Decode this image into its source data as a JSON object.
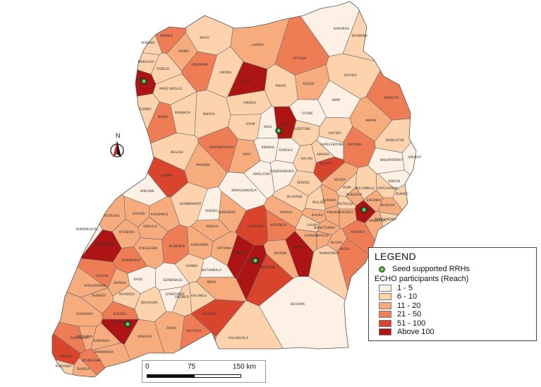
{
  "colors": {
    "c1": "#fdf0e4",
    "c2": "#fcd3ac",
    "c3": "#f7ac7d",
    "c4": "#ee7d55",
    "c5": "#d9452c",
    "c6": "#ad1414"
  },
  "districts": [
    {
      "name": "KAABONG",
      "c": "c2"
    },
    {
      "name": "KARENGA",
      "c": "c1"
    },
    {
      "name": "LAMWO",
      "c": "c3"
    },
    {
      "name": "KITGUM",
      "c": "c4"
    },
    {
      "name": "KOTIDO",
      "c": "c2"
    },
    {
      "name": "MOROTO",
      "c": "c4"
    },
    {
      "name": "NAPAK",
      "c": "c3"
    },
    {
      "name": "NABILATUK",
      "c": "c2"
    },
    {
      "name": "NAKAPIRIPIRIT",
      "c": "c1"
    },
    {
      "name": "AMUDAT",
      "c": "c1"
    },
    {
      "name": "ABIM",
      "c": "c1"
    },
    {
      "name": "AGAGO",
      "c": "c3"
    },
    {
      "name": "PADER",
      "c": "c2"
    },
    {
      "name": "GULU",
      "c": "c6"
    },
    {
      "name": "AMURU",
      "c": "c2"
    },
    {
      "name": "OMORO",
      "c": "c2"
    },
    {
      "name": "ADJUMANI",
      "c": "c4"
    },
    {
      "name": "YUMBE",
      "c": "c3"
    },
    {
      "name": "MOYO",
      "c": "c2"
    },
    {
      "name": "OBONGI",
      "c": "c4"
    },
    {
      "name": "KOBOKO",
      "c": "c2"
    },
    {
      "name": "MARACHA",
      "c": "c2"
    },
    {
      "name": "TEREGO",
      "c": "c2"
    },
    {
      "name": "ARUA",
      "c": "c6"
    },
    {
      "name": "MADI OKOLLO",
      "c": "c2"
    },
    {
      "name": "ZOMBO",
      "c": "c2"
    },
    {
      "name": "NEBBI",
      "c": "c4"
    },
    {
      "name": "PAKWACH",
      "c": "c2"
    },
    {
      "name": "NWOYA",
      "c": "c2"
    },
    {
      "name": "OYAM",
      "c": "c2"
    },
    {
      "name": "KOLE",
      "c": "c1"
    },
    {
      "name": "LIRA",
      "c": "c6"
    },
    {
      "name": "ALEBTONG",
      "c": "c2"
    },
    {
      "name": "OTUKE",
      "c": "c1"
    },
    {
      "name": "KOTIDO",
      "c": "c2"
    },
    {
      "name": "KAPELEBYONG",
      "c": "c1"
    },
    {
      "name": "AMURIA",
      "c": "c2"
    },
    {
      "name": "KATAKWI",
      "c": "c4"
    },
    {
      "name": "SOROTI",
      "c": "c5"
    },
    {
      "name": "DOKOLO",
      "c": "c1"
    },
    {
      "name": "KWANIA",
      "c": "c1"
    },
    {
      "name": "KALAKI",
      "c": "c2"
    },
    {
      "name": "APAC",
      "c": "c3"
    },
    {
      "name": "AMOLATAR",
      "c": "c1"
    },
    {
      "name": "KIRYANDONGO",
      "c": "c4"
    },
    {
      "name": "MASINDI",
      "c": "c3"
    },
    {
      "name": "BULIISA",
      "c": "c2"
    },
    {
      "name": "HOIMA",
      "c": "c5"
    },
    {
      "name": "KIKUUBE",
      "c": "c1"
    },
    {
      "name": "KYANKWANZI",
      "c": "c2"
    },
    {
      "name": "NAKASONGOLA",
      "c": "c1"
    },
    {
      "name": "KABERAMAIDO",
      "c": "c1"
    },
    {
      "name": "SERERE",
      "c": "c2"
    },
    {
      "name": "NGORA",
      "c": "c3"
    },
    {
      "name": "KUMI",
      "c": "c2"
    },
    {
      "name": "BUKEDEA",
      "c": "c3"
    },
    {
      "name": "BULAMBULI",
      "c": "c2"
    },
    {
      "name": "KAPCHORWA",
      "c": "c2"
    },
    {
      "name": "KWEEN",
      "c": "c1"
    },
    {
      "name": "BUKWO",
      "c": "c2"
    },
    {
      "name": "MBALE",
      "c": "c6"
    },
    {
      "name": "SIRONKO",
      "c": "c3"
    },
    {
      "name": "BUDUDA",
      "c": "c3"
    },
    {
      "name": "NAMISINDWA",
      "c": "c2"
    },
    {
      "name": "MANAFWA",
      "c": "c3"
    },
    {
      "name": "TORORO",
      "c": "c4"
    },
    {
      "name": "BUTALEJA",
      "c": "c2"
    },
    {
      "name": "BUDAKA",
      "c": "c3"
    },
    {
      "name": "PALLISA",
      "c": "c2"
    },
    {
      "name": "KIBUKU",
      "c": "c3"
    },
    {
      "name": "BUKEDEA",
      "c": "c3"
    },
    {
      "name": "BUYENDE",
      "c": "c2"
    },
    {
      "name": "KALIRO",
      "c": "c3"
    },
    {
      "name": "NAMUTUMBA",
      "c": "c3"
    },
    {
      "name": "LUUKA",
      "c": "c2"
    },
    {
      "name": "IGANGA",
      "c": "c3"
    },
    {
      "name": "JINJA",
      "c": "c6"
    },
    {
      "name": "BUGIRI",
      "c": "c3"
    },
    {
      "name": "BUSIA",
      "c": "c4"
    },
    {
      "name": "NAMAYINGO",
      "c": "c2"
    },
    {
      "name": "MAYUGE",
      "c": "c3"
    },
    {
      "name": "KAMULI",
      "c": "c3"
    },
    {
      "name": "KAYUNGA",
      "c": "c4"
    },
    {
      "name": "BUIKWE",
      "c": "c3"
    },
    {
      "name": "MUKONO",
      "c": "c5"
    },
    {
      "name": "BUVUMA",
      "c": "c1"
    },
    {
      "name": "KAMPALA",
      "c": "c6"
    },
    {
      "name": "WAKISO",
      "c": "c6"
    },
    {
      "name": "LUWEERO",
      "c": "c5"
    },
    {
      "name": "NAKASEKE",
      "c": "c3"
    },
    {
      "name": "KIBOGA",
      "c": "c3"
    },
    {
      "name": "MITYANA",
      "c": "c3"
    },
    {
      "name": "MUBENDE",
      "c": "c4"
    },
    {
      "name": "KASSANDA",
      "c": "c3"
    },
    {
      "name": "GOMBA",
      "c": "c2"
    },
    {
      "name": "BUTAMBALA",
      "c": "c1"
    },
    {
      "name": "MPIGI",
      "c": "c3"
    },
    {
      "name": "KALUNGU",
      "c": "c2"
    },
    {
      "name": "MASAKA",
      "c": "c5"
    },
    {
      "name": "KALANGALA",
      "c": "c2"
    },
    {
      "name": "LWENGO",
      "c": "c2"
    },
    {
      "name": "RAKAI",
      "c": "c3"
    },
    {
      "name": "KYOTERA",
      "c": "c4"
    },
    {
      "name": "ISINGIRO",
      "c": "c3"
    },
    {
      "name": "KIRUHURA",
      "c": "c2"
    },
    {
      "name": "SEMBABULE",
      "c": "c1"
    },
    {
      "name": "LYANTONDE",
      "c": "c1"
    },
    {
      "name": "KAZO",
      "c": "c1"
    },
    {
      "name": "IBANDA",
      "c": "c3"
    },
    {
      "name": "KAMWENGE",
      "c": "c4"
    },
    {
      "name": "KYEGEGWA",
      "c": "c3"
    },
    {
      "name": "KYENJOJO",
      "c": "c3"
    },
    {
      "name": "KAKUMIRO",
      "c": "c3"
    },
    {
      "name": "KAGADI",
      "c": "c3"
    },
    {
      "name": "KIBAALE",
      "c": "c3"
    },
    {
      "name": "NTOROKO",
      "c": "c3"
    },
    {
      "name": "BUNDIBUGYO",
      "c": "c1"
    },
    {
      "name": "FORTPORTAL",
      "c": "c6"
    },
    {
      "name": "KASESE",
      "c": "c4"
    },
    {
      "name": "KITAGWENDA",
      "c": "c3"
    },
    {
      "name": "BUHWEJU",
      "c": "c2"
    },
    {
      "name": "RUBIRIZI",
      "c": "c3"
    },
    {
      "name": "BUSHENYI",
      "c": "c3"
    },
    {
      "name": "MBARARA",
      "c": "c6"
    },
    {
      "name": "SHEEMA",
      "c": "c4"
    },
    {
      "name": "MITOOMA",
      "c": "c3"
    },
    {
      "name": "RUKUNGIRI",
      "c": "c4"
    },
    {
      "name": "KANUNGU",
      "c": "c3"
    },
    {
      "name": "RWAMPARA",
      "c": "c3"
    },
    {
      "name": "NTUNGAMO",
      "c": "c4"
    },
    {
      "name": "RUKIGA",
      "c": "c3"
    },
    {
      "name": "KABALE",
      "c": "c5"
    },
    {
      "name": "RUBANDA",
      "c": "c2"
    },
    {
      "name": "KISORO",
      "c": "c1"
    }
  ],
  "seed_sites": [
    {
      "name": "Arua"
    },
    {
      "name": "Lira"
    },
    {
      "name": "Mbale"
    },
    {
      "name": "Kampala"
    },
    {
      "name": "Mbarara"
    }
  ],
  "legend": {
    "title": "LEGEND",
    "seed_label": "Seed supported RRHs",
    "subtitle": "ECHO participants (Reach)",
    "classes": [
      {
        "label": "1 - 5",
        "c": "c1"
      },
      {
        "label": "6 - 10",
        "c": "c2"
      },
      {
        "label": "11 - 20",
        "c": "c3"
      },
      {
        "label": "21 - 50",
        "c": "c4"
      },
      {
        "label": "51 - 100",
        "c": "c5"
      },
      {
        "label": "Above 100",
        "c": "c6"
      }
    ]
  },
  "north_arrow": {
    "label": "N"
  },
  "scale_bar": {
    "ticks": [
      "0",
      "75",
      "150 km"
    ]
  }
}
